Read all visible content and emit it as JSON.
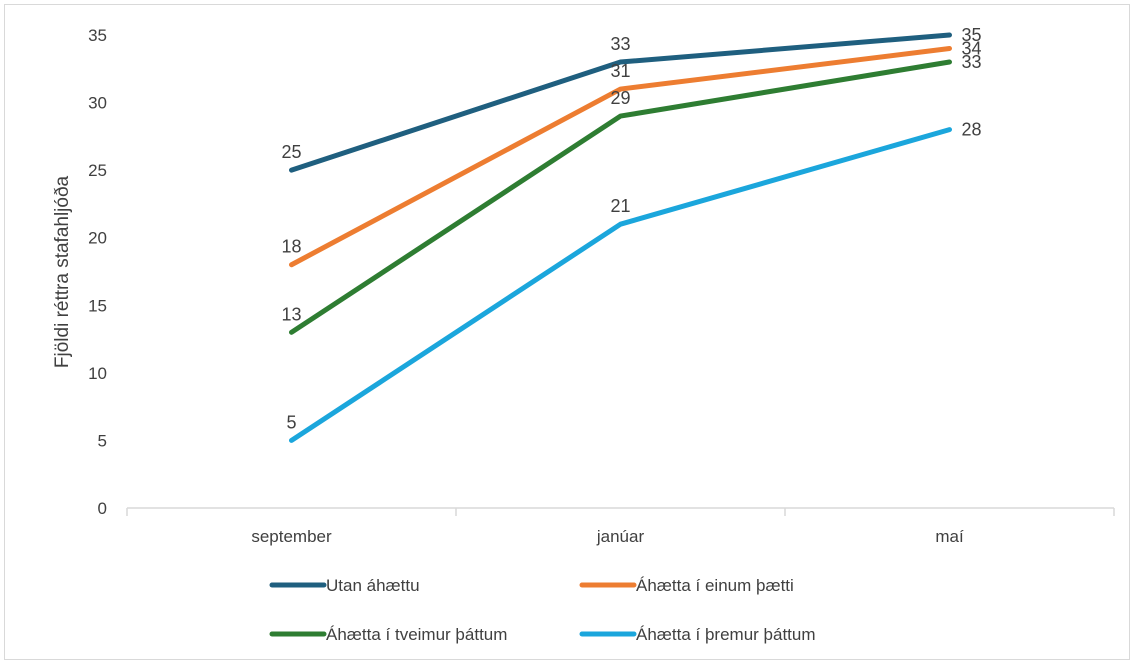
{
  "chart_data": {
    "type": "line",
    "title": "",
    "xlabel": "",
    "ylabel": "Fjöldi réttra stafahljóða",
    "categories": [
      "september",
      "janúar",
      "maí"
    ],
    "ylim": [
      0,
      35
    ],
    "yticks": [
      0,
      5,
      10,
      15,
      20,
      25,
      30,
      35
    ],
    "grid": false,
    "legend_position": "bottom",
    "data_labels": true,
    "series": [
      {
        "name": "Utan áhættu",
        "values": [
          25,
          33,
          35
        ],
        "color": "#1f5f7f"
      },
      {
        "name": "Áhætta í einum þætti",
        "values": [
          18,
          31,
          34
        ],
        "color": "#ed7d31"
      },
      {
        "name": "Áhætta í tveimur þáttum",
        "values": [
          13,
          29,
          33
        ],
        "color": "#2e7d32"
      },
      {
        "name": "Áhætta í þremur þáttum",
        "values": [
          5,
          21,
          28
        ],
        "color": "#1ba6dc"
      }
    ]
  }
}
